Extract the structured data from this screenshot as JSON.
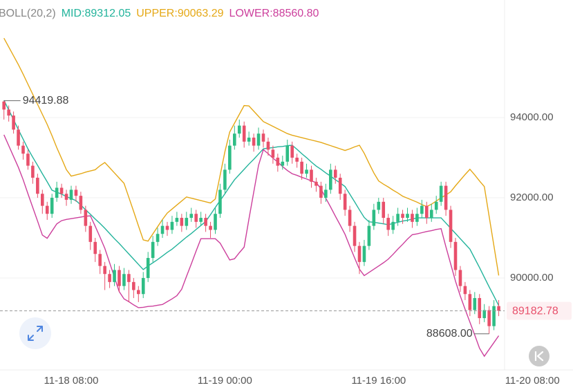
{
  "chart_data": {
    "type": "candlestick",
    "indicator": "BOLL(20,2)",
    "up_color": "#2ebd85",
    "down_color": "#e8506b",
    "ylim": [
      87708,
      96931
    ],
    "yticks": [
      {
        "value": 90000,
        "label": "90000.00"
      },
      {
        "value": 92000,
        "label": "92000.00"
      },
      {
        "value": 94000,
        "label": "94000.00"
      }
    ],
    "grid": true,
    "max_marker": "94419.88",
    "min_marker": "88608.00",
    "categories": [
      null,
      null,
      null,
      null,
      null,
      null,
      null,
      null,
      null,
      null,
      null,
      null,
      null,
      null,
      "11-18 08:00",
      null,
      null,
      null,
      null,
      null,
      null,
      null,
      null,
      null,
      null,
      null,
      null,
      null,
      null,
      null,
      null,
      null,
      null,
      null,
      null,
      null,
      null,
      null,
      null,
      null,
      null,
      null,
      null,
      null,
      null,
      null,
      "11-19 00:00",
      null,
      null,
      null,
      null,
      null,
      null,
      null,
      null,
      null,
      null,
      null,
      null,
      null,
      null,
      null,
      null,
      null,
      null,
      null,
      null,
      null,
      null,
      null,
      null,
      null,
      null,
      null,
      null,
      null,
      null,
      null,
      "11-19 16:00",
      null,
      null,
      null,
      null,
      null,
      null,
      null,
      null,
      null,
      null,
      null,
      null,
      null,
      null,
      null,
      null,
      null,
      null,
      null,
      null,
      null,
      null,
      null,
      null,
      null,
      null,
      null,
      null,
      null,
      null,
      null,
      "11-20 08:00"
    ],
    "ohlc": [
      [
        94400,
        94419.88,
        93950,
        94200
      ],
      [
        94200,
        94300,
        93900,
        94050
      ],
      [
        94050,
        94150,
        93600,
        93700
      ],
      [
        93700,
        93800,
        93200,
        93300
      ],
      [
        93300,
        93400,
        92950,
        93100
      ],
      [
        93100,
        93200,
        92700,
        92800
      ],
      [
        92800,
        92900,
        92350,
        92500
      ],
      [
        92500,
        92600,
        92000,
        92100
      ],
      [
        92100,
        92200,
        91600,
        91800
      ],
      [
        91800,
        91900,
        91450,
        91600
      ],
      [
        91600,
        92100,
        91500,
        92000
      ],
      [
        92000,
        92400,
        91900,
        92250
      ],
      [
        92250,
        92350,
        92000,
        92100
      ],
      [
        92100,
        92200,
        91800,
        91950
      ],
      [
        91950,
        92300,
        91850,
        92200
      ],
      [
        92200,
        92300,
        91900,
        92050
      ],
      [
        92050,
        92150,
        91600,
        91700
      ],
      [
        91700,
        91800,
        91150,
        91300
      ],
      [
        91300,
        91400,
        90700,
        90900
      ],
      [
        90900,
        91000,
        90400,
        90600
      ],
      [
        90600,
        90700,
        90100,
        90300
      ],
      [
        90300,
        90400,
        89700,
        90100
      ],
      [
        90100,
        90200,
        89750,
        89900
      ],
      [
        89900,
        90350,
        89800,
        90200
      ],
      [
        90200,
        90300,
        89650,
        89800
      ],
      [
        89800,
        90250,
        89700,
        90100
      ],
      [
        90100,
        90200,
        89400,
        89900
      ],
      [
        89900,
        90000,
        89500,
        89700
      ],
      [
        89700,
        89800,
        89400,
        89600
      ],
      [
        89600,
        90150,
        89500,
        90000
      ],
      [
        90000,
        90650,
        89900,
        90500
      ],
      [
        90500,
        91050,
        90400,
        90900
      ],
      [
        90900,
        91250,
        90800,
        91100
      ],
      [
        91100,
        91450,
        91000,
        91300
      ],
      [
        91300,
        91400,
        91050,
        91200
      ],
      [
        91200,
        91550,
        91100,
        91400
      ],
      [
        91400,
        91650,
        91300,
        91500
      ],
      [
        91500,
        91600,
        91150,
        91300
      ],
      [
        91300,
        91650,
        91200,
        91500
      ],
      [
        91500,
        91750,
        91400,
        91600
      ],
      [
        91600,
        91700,
        91250,
        91400
      ],
      [
        91400,
        91650,
        91300,
        91500
      ],
      [
        91500,
        91600,
        91150,
        91300
      ],
      [
        91300,
        91400,
        91000,
        91200
      ],
      [
        91200,
        91750,
        91100,
        91600
      ],
      [
        91600,
        92350,
        91500,
        92200
      ],
      [
        92200,
        92850,
        92100,
        92700
      ],
      [
        92700,
        93450,
        92600,
        93300
      ],
      [
        93300,
        93800,
        93200,
        93600
      ],
      [
        93600,
        93950,
        93500,
        93800
      ],
      [
        93800,
        93900,
        93250,
        93400
      ],
      [
        93400,
        93650,
        93300,
        93500
      ],
      [
        93500,
        93600,
        93150,
        93300
      ],
      [
        93300,
        93750,
        93200,
        93600
      ],
      [
        93600,
        93700,
        93250,
        93400
      ],
      [
        93400,
        93500,
        93050,
        93200
      ],
      [
        93200,
        93300,
        92850,
        93000
      ],
      [
        93000,
        93100,
        92650,
        92800
      ],
      [
        92800,
        93050,
        92700,
        92900
      ],
      [
        92900,
        93450,
        92800,
        93300
      ],
      [
        93300,
        93400,
        92850,
        93000
      ],
      [
        93000,
        93100,
        92750,
        92900
      ],
      [
        92900,
        93000,
        92450,
        92600
      ],
      [
        92600,
        92850,
        92500,
        92700
      ],
      [
        92700,
        92800,
        92250,
        92400
      ],
      [
        92400,
        92500,
        92150,
        92300
      ],
      [
        92300,
        92400,
        91850,
        92000
      ],
      [
        92000,
        92350,
        91900,
        92200
      ],
      [
        92200,
        92850,
        92100,
        92700
      ],
      [
        92700,
        92800,
        92350,
        92500
      ],
      [
        92500,
        92600,
        91950,
        92100
      ],
      [
        92100,
        92200,
        91550,
        91700
      ],
      [
        91700,
        91800,
        91150,
        91300
      ],
      [
        91300,
        91400,
        90650,
        90800
      ],
      [
        90800,
        90900,
        90100,
        90400
      ],
      [
        90400,
        90950,
        90300,
        90800
      ],
      [
        90800,
        91450,
        90700,
        91300
      ],
      [
        91300,
        91850,
        91200,
        91700
      ],
      [
        91700,
        92000,
        91600,
        91900
      ],
      [
        91900,
        92000,
        91350,
        91500
      ],
      [
        91500,
        91600,
        91050,
        91200
      ],
      [
        91200,
        91550,
        91100,
        91400
      ],
      [
        91400,
        91750,
        91300,
        91600
      ],
      [
        91600,
        91700,
        91350,
        91500
      ],
      [
        91500,
        91750,
        91400,
        91600
      ],
      [
        91600,
        91700,
        91250,
        91400
      ],
      [
        91400,
        91750,
        91300,
        91600
      ],
      [
        91600,
        91950,
        91500,
        91800
      ],
      [
        91800,
        91900,
        91350,
        91500
      ],
      [
        91500,
        91850,
        91400,
        91700
      ],
      [
        91700,
        92050,
        91600,
        91900
      ],
      [
        91900,
        92400,
        91800,
        92300
      ],
      [
        92300,
        92400,
        91550,
        91700
      ],
      [
        91700,
        91800,
        90750,
        90900
      ],
      [
        90900,
        91000,
        90050,
        90200
      ],
      [
        90200,
        90300,
        89650,
        89800
      ],
      [
        89800,
        89900,
        89450,
        89600
      ],
      [
        89600,
        89700,
        89050,
        89200
      ],
      [
        89200,
        89650,
        89100,
        89500
      ],
      [
        89500,
        89600,
        88850,
        89000
      ],
      [
        89000,
        89350,
        88900,
        89200
      ],
      [
        89200,
        89300,
        88608.0,
        88800
      ],
      [
        88800,
        89450,
        88700,
        89300
      ],
      [
        89300,
        89450,
        89050,
        89182.78
      ],
      null,
      null,
      null,
      null,
      null,
      null,
      null
    ],
    "series": [
      {
        "name": "MID:",
        "color": "#22b39b",
        "last_label": "89312.05",
        "values": [
          94430,
          94190,
          93950,
          93700,
          93460,
          93220,
          93010,
          92810,
          92600,
          92400,
          92190,
          92140,
          92090,
          92030,
          91980,
          91930,
          91820,
          91700,
          91590,
          91470,
          91360,
          91240,
          91110,
          90980,
          90860,
          90730,
          90600,
          90470,
          90340,
          90210,
          90300,
          90380,
          90460,
          90550,
          90640,
          90720,
          90820,
          90920,
          91020,
          91110,
          91210,
          91310,
          91410,
          91580,
          91760,
          91930,
          92100,
          92280,
          92450,
          92580,
          92710,
          92840,
          92960,
          93090,
          93220,
          93240,
          93250,
          93270,
          93280,
          93300,
          93310,
          93210,
          93100,
          93000,
          92890,
          92790,
          92710,
          92620,
          92540,
          92450,
          92370,
          92280,
          92090,
          91900,
          91700,
          91510,
          91400,
          91390,
          91370,
          91350,
          91330,
          91360,
          91390,
          91420,
          91440,
          91470,
          91500,
          91500,
          91500,
          91500,
          91500,
          91500,
          91370,
          91240,
          91110,
          90980,
          90850,
          90720,
          90490,
          90260,
          90020,
          89780,
          89550,
          89312.05,
          null,
          null,
          null,
          null,
          null,
          null,
          null
        ]
      },
      {
        "name": "UPPER:",
        "color": "#e5a816",
        "last_label": "90063.29",
        "values": [
          95980,
          95760,
          95540,
          95320,
          95080,
          94830,
          94580,
          94330,
          94080,
          93830,
          93550,
          93250,
          92980,
          92700,
          92540,
          92570,
          92600,
          92640,
          92670,
          92700,
          92800,
          92880,
          92750,
          92620,
          92490,
          92360,
          92010,
          91660,
          91300,
          90950,
          90920,
          91100,
          91280,
          91460,
          91620,
          91720,
          91820,
          91920,
          92020,
          91990,
          91960,
          91930,
          91900,
          91870,
          91970,
          92560,
          93150,
          93640,
          93860,
          94080,
          94300,
          94290,
          94160,
          94030,
          93900,
          93840,
          93780,
          93720,
          93660,
          93600,
          93560,
          93530,
          93500,
          93470,
          93440,
          93410,
          93380,
          93340,
          93300,
          93260,
          93220,
          93180,
          93220,
          93270,
          93310,
          93110,
          92860,
          92620,
          92420,
          92340,
          92270,
          92190,
          92120,
          92040,
          91990,
          91940,
          91890,
          91830,
          91780,
          91840,
          91920,
          92000,
          92070,
          92150,
          92300,
          92440,
          92580,
          92710,
          92570,
          92420,
          92280,
          91540,
          90800,
          90063.29,
          null,
          null,
          null,
          null,
          null,
          null,
          null
        ]
      },
      {
        "name": "LOWER:",
        "color": "#cc3f9c",
        "last_label": "88560.80",
        "values": [
          93570,
          93300,
          93030,
          92760,
          92450,
          92100,
          91760,
          91420,
          91070,
          90990,
          91170,
          91350,
          91430,
          91460,
          91480,
          91500,
          91520,
          91540,
          91550,
          91290,
          91020,
          90740,
          90380,
          90020,
          89660,
          89480,
          89410,
          89330,
          89260,
          89270,
          89290,
          89300,
          89320,
          89340,
          89410,
          89480,
          89560,
          89720,
          90040,
          90350,
          90670,
          90980,
          90980,
          90980,
          90980,
          90870,
          90660,
          90450,
          90480,
          90630,
          90770,
          91470,
          92140,
          92810,
          93200,
          93100,
          92990,
          92890,
          92780,
          92680,
          92600,
          92560,
          92510,
          92470,
          92420,
          92380,
          92220,
          91990,
          91770,
          91540,
          91320,
          91090,
          90790,
          90500,
          90220,
          90060,
          90140,
          90220,
          90300,
          90380,
          90470,
          90590,
          90720,
          90840,
          90970,
          91080,
          91100,
          91130,
          91160,
          91180,
          91210,
          91230,
          90780,
          90350,
          89920,
          89550,
          89220,
          88900,
          88580,
          88250,
          88050,
          88220,
          88390,
          88560.8,
          null,
          null,
          null,
          null,
          null,
          null,
          null
        ]
      }
    ]
  }
}
